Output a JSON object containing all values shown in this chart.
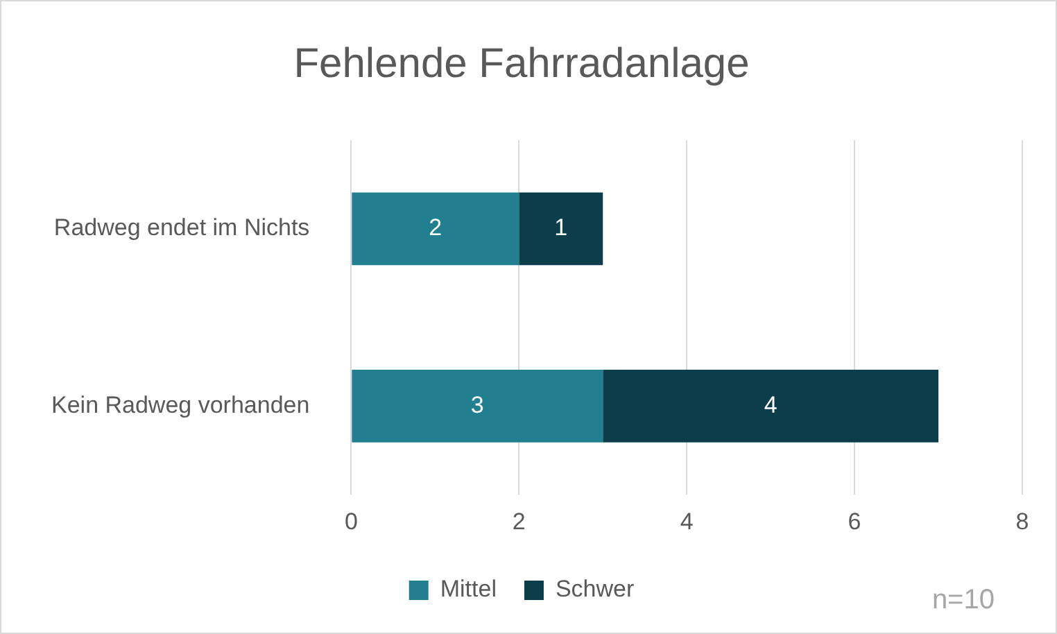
{
  "chart_data": {
    "type": "bar",
    "title": "Fehlende Fahrradanlage",
    "orientation": "horizontal",
    "stacked": true,
    "categories": [
      "Radweg endet im Nichts",
      "Kein Radweg vorhanden"
    ],
    "series": [
      {
        "name": "Mittel",
        "color": "#217f8f",
        "values": [
          2,
          3
        ]
      },
      {
        "name": "Schwer",
        "color": "#0b3d4b",
        "values": [
          1,
          4
        ]
      }
    ],
    "xlim": [
      0,
      8
    ],
    "xticks": [
      0,
      2,
      4,
      6,
      8
    ],
    "grid": "x",
    "legend": "bottom",
    "data_labels": true,
    "annotations": [
      "n=10"
    ]
  }
}
